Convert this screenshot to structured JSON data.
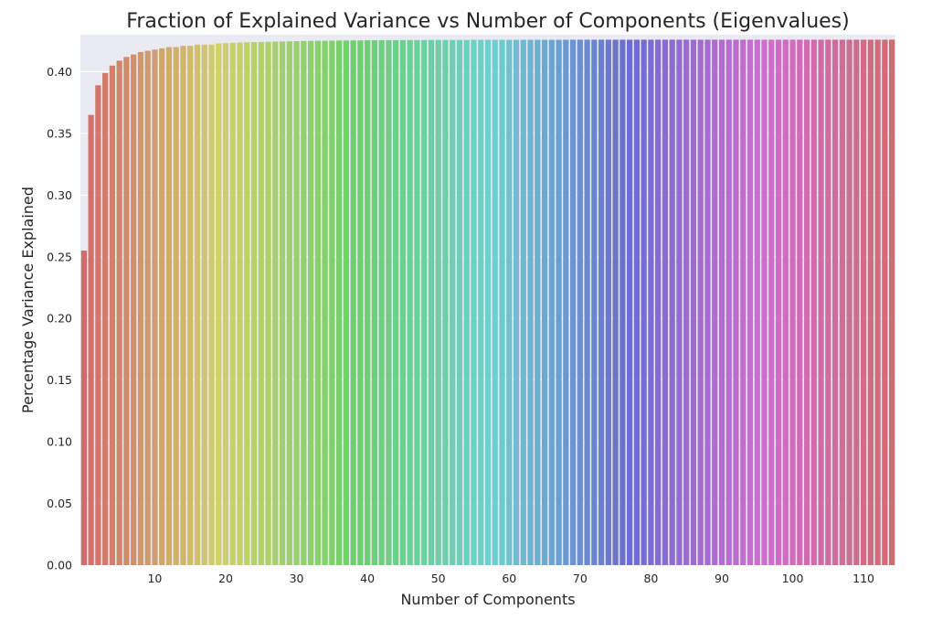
{
  "chart_data": {
    "type": "bar",
    "title": "Fraction of Explained Variance vs Number of Components (Eigenvalues)",
    "xlabel": "Number of Components",
    "ylabel": "Percentage Variance Explained",
    "n_components": 115,
    "first_values": [
      0.255,
      0.365,
      0.389,
      0.399,
      0.405,
      0.409,
      0.412,
      0.414,
      0.416,
      0.417,
      0.418,
      0.419,
      0.42,
      0.42,
      0.421,
      0.421,
      0.422,
      0.422,
      0.422,
      0.423
    ],
    "plateau_value": 0.426,
    "ylim": [
      0,
      0.43
    ],
    "yticks": [
      0.0,
      0.05,
      0.1,
      0.15,
      0.2,
      0.25,
      0.3,
      0.35,
      0.4
    ],
    "ytick_labels": [
      "0.00",
      "0.05",
      "0.10",
      "0.15",
      "0.20",
      "0.25",
      "0.30",
      "0.35",
      "0.40"
    ],
    "xticks": [
      10,
      20,
      30,
      40,
      50,
      60,
      70,
      80,
      90,
      100,
      110
    ],
    "xtick_labels": [
      "10",
      "20",
      "30",
      "40",
      "50",
      "60",
      "70",
      "80",
      "90",
      "100",
      "110"
    ],
    "grid": true,
    "palette": "husl",
    "background_color": "#eaeaf2",
    "grid_color": "#ffffff"
  }
}
